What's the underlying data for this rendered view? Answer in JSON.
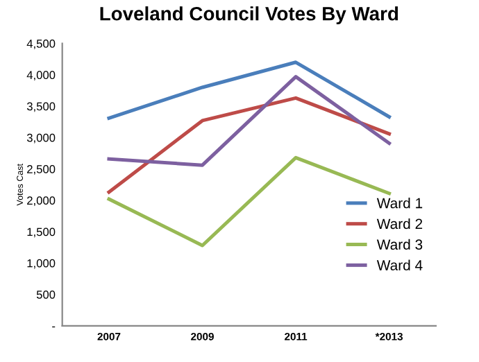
{
  "chart_data": {
    "type": "line",
    "title": "Loveland Council Votes By Ward",
    "ylabel": "Votes Cast",
    "categories": [
      "2007",
      "2009",
      "2011",
      "*2013"
    ],
    "series": [
      {
        "name": "Ward 1",
        "color": "#4a7ebb",
        "values": [
          3310,
          3800,
          4200,
          3330
        ]
      },
      {
        "name": "Ward 2",
        "color": "#be4b48",
        "values": [
          2130,
          3270,
          3630,
          3060
        ]
      },
      {
        "name": "Ward 3",
        "color": "#98b954",
        "values": [
          2020,
          1280,
          2680,
          2110
        ]
      },
      {
        "name": "Ward 4",
        "color": "#7d60a0",
        "values": [
          2660,
          2560,
          3970,
          2910
        ]
      }
    ],
    "ylim": [
      0,
      4500
    ],
    "yticks": [
      {
        "value": 0,
        "label": "-"
      },
      {
        "value": 500,
        "label": "500"
      },
      {
        "value": 1000,
        "label": "1,000"
      },
      {
        "value": 1500,
        "label": "1,500"
      },
      {
        "value": 2000,
        "label": "2,000"
      },
      {
        "value": 2500,
        "label": "2,500"
      },
      {
        "value": 3000,
        "label": "3,000"
      },
      {
        "value": 3500,
        "label": "3,500"
      },
      {
        "value": 4000,
        "label": "4,000"
      },
      {
        "value": 4500,
        "label": "4,500"
      }
    ],
    "grid": false,
    "legend": "right",
    "marker": "none",
    "line_style": "solid"
  }
}
